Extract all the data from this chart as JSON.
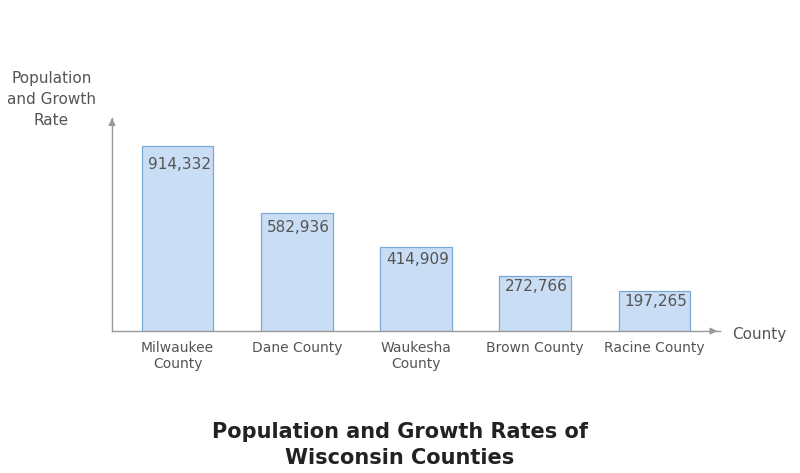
{
  "categories": [
    "Milwaukee\nCounty",
    "Dane County",
    "Waukesha\nCounty",
    "Brown County",
    "Racine County"
  ],
  "values": [
    914332,
    582936,
    414909,
    272766,
    197265
  ],
  "labels": [
    "914,332",
    "582,936",
    "414,909",
    "272,766",
    "197,265"
  ],
  "bar_color": "#c9ddf5",
  "bar_edgecolor": "#7aaad4",
  "title": "Population and Growth Rates of\nWisconsin Counties",
  "title_fontsize": 15,
  "ylabel": "Population\nand Growth\nRate",
  "xlabel": "County",
  "label_fontsize": 11,
  "tick_fontsize": 10,
  "axis_label_fontsize": 11,
  "background_color": "#ffffff",
  "bar_width": 0.6,
  "ylim_max": 1050000,
  "text_color": "#555555",
  "spine_color": "#999999"
}
